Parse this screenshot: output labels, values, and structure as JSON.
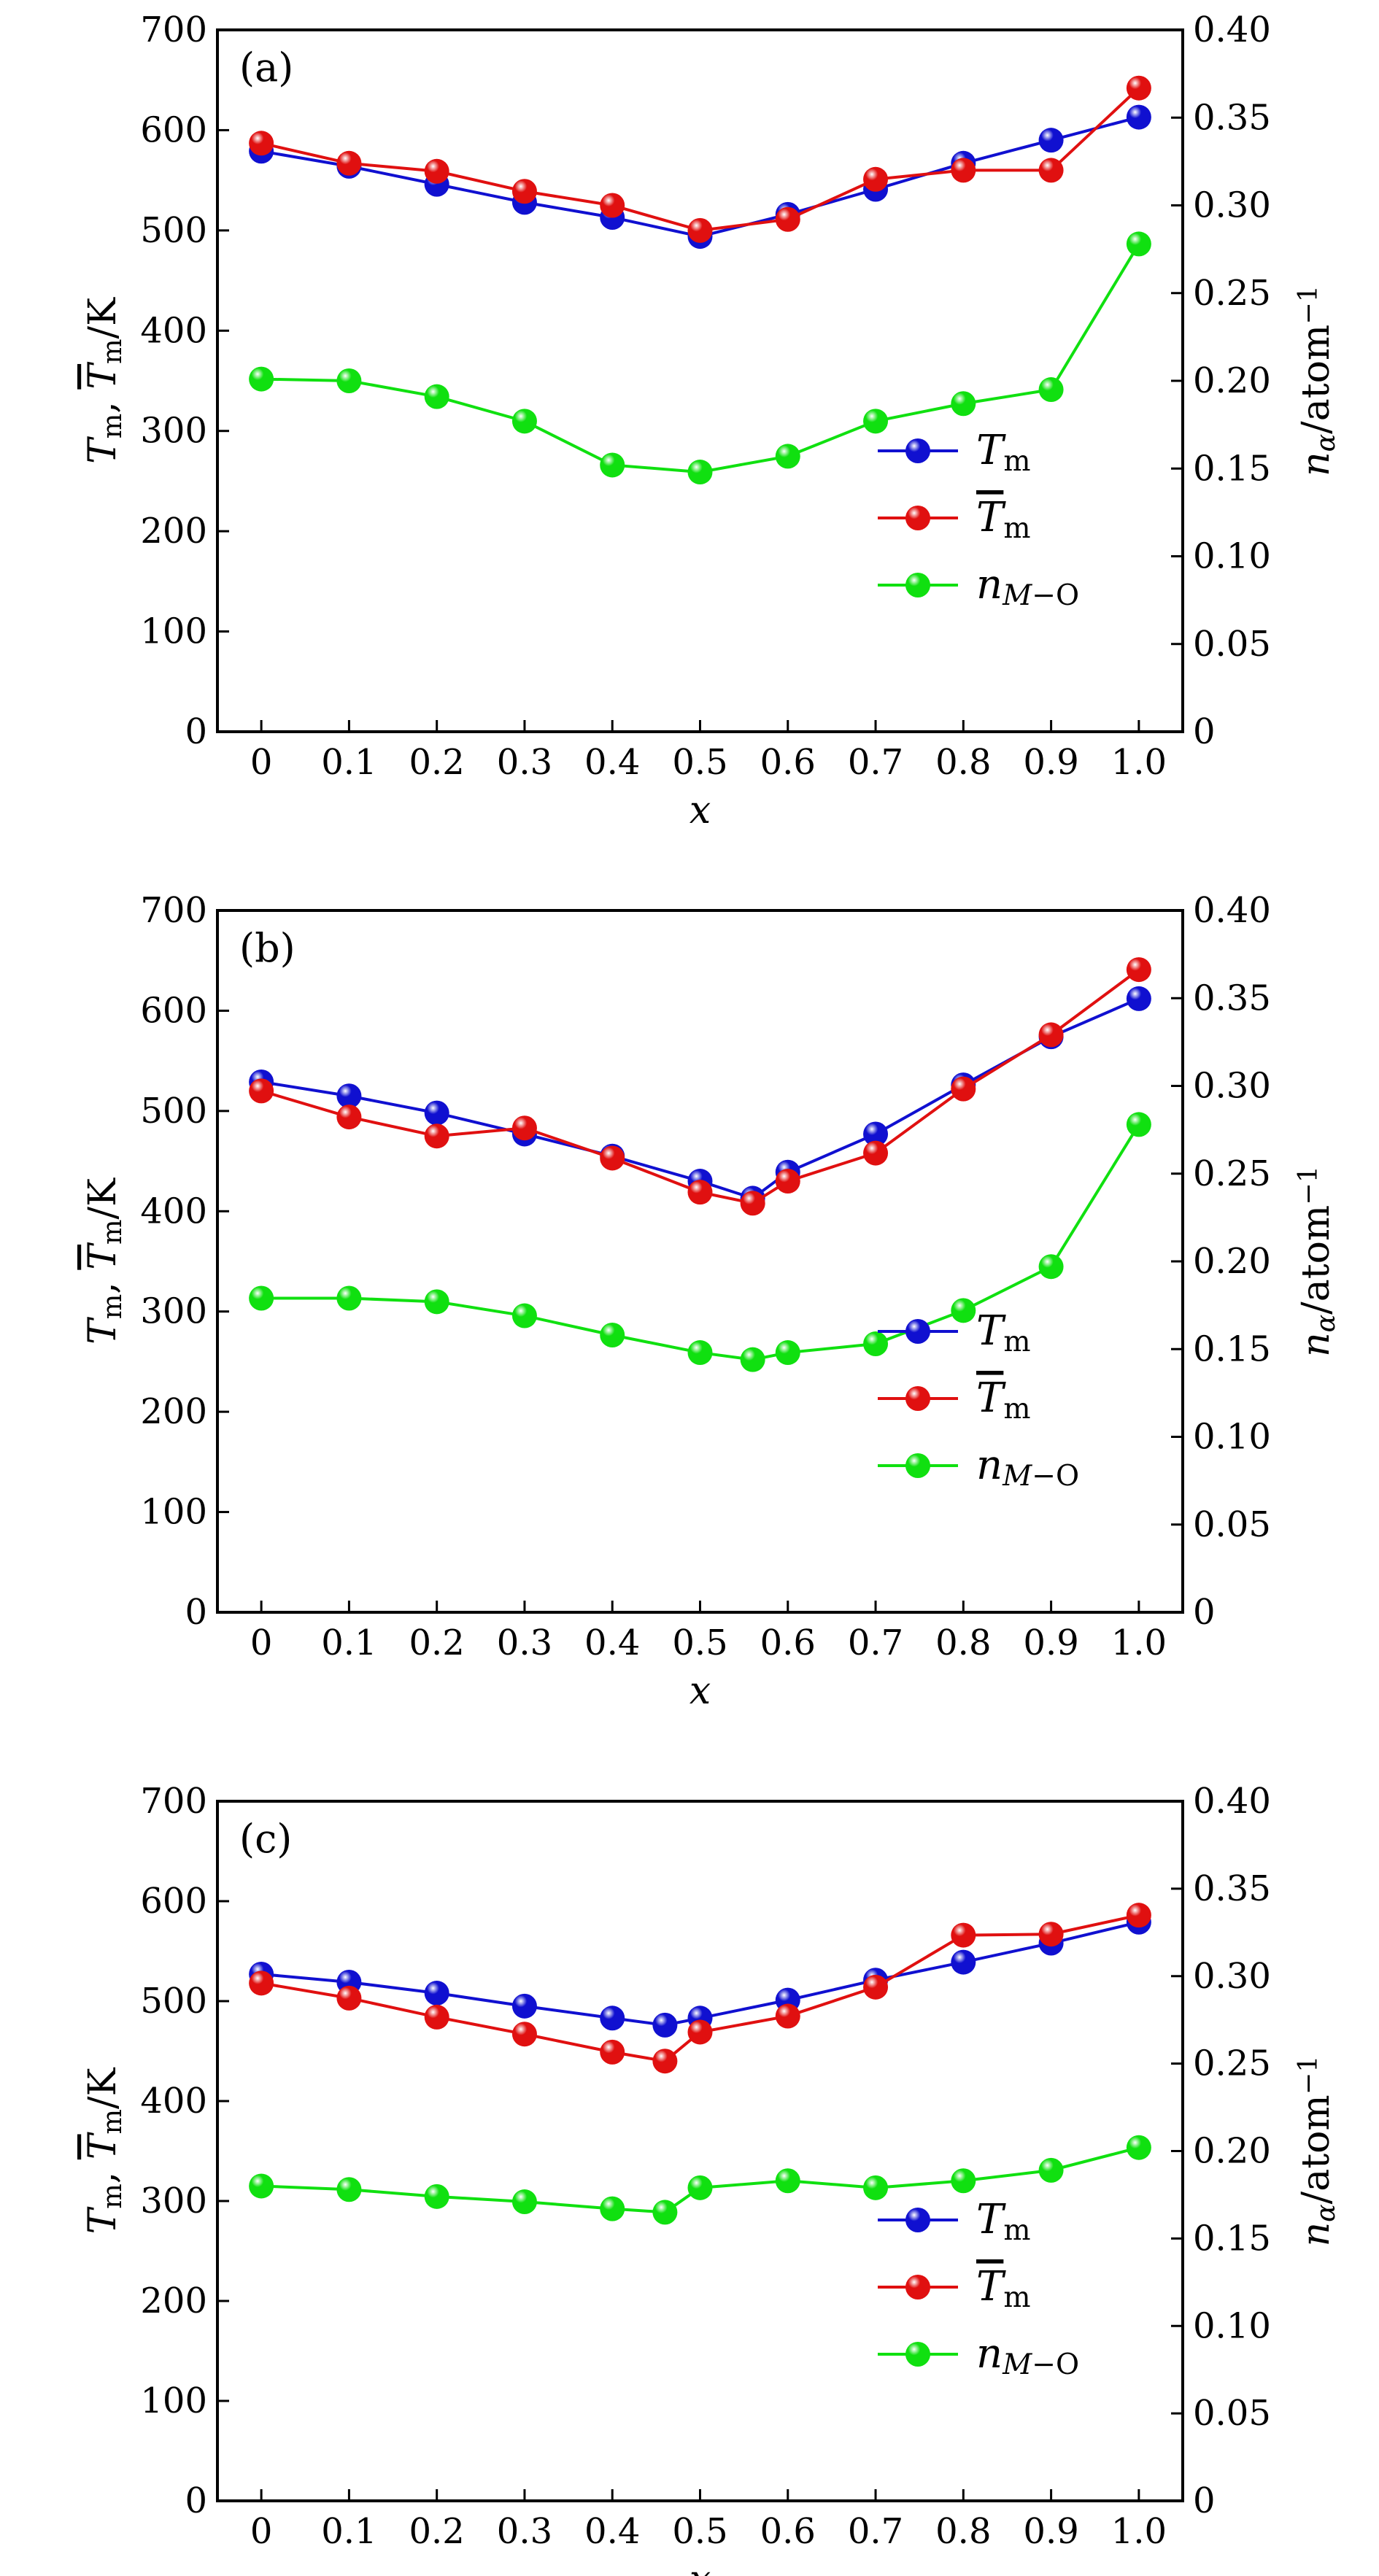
{
  "colors": {
    "Tm": "#1010d0",
    "Tm_bar": "#e01010",
    "n_MO": "#10e010"
  },
  "legend": {
    "placement": "lower-right",
    "entries": [
      {
        "key": "Tm",
        "parts": [
          {
            "t": "T",
            "i": true
          },
          {
            "t": "m",
            "sub": true
          }
        ]
      },
      {
        "key": "Tm_bar",
        "parts": [
          {
            "t": "T",
            "i": true,
            "bar": true
          },
          {
            "t": "m",
            "sub": true
          }
        ]
      },
      {
        "key": "n_MO",
        "parts": [
          {
            "t": "n",
            "i": true
          },
          {
            "t": "M",
            "sub": true,
            "i": true
          },
          {
            "t": "−O",
            "sub": true
          }
        ]
      }
    ]
  },
  "chart_data": [
    {
      "type": "line",
      "panel_label": "(a)",
      "xlabel": "x",
      "ylabel_left": [
        {
          "t": "T",
          "i": true
        },
        {
          "t": "m",
          "sub": true
        },
        {
          "t": ", "
        },
        {
          "t": "T",
          "i": true,
          "bar": true
        },
        {
          "t": "m",
          "sub": true
        },
        {
          "t": "/K"
        }
      ],
      "ylabel_right": [
        {
          "t": "n",
          "i": true
        },
        {
          "t": "α",
          "sub": true,
          "i": true
        },
        {
          "t": "/atom"
        },
        {
          "t": "−1",
          "sup": true
        }
      ],
      "xlim": [
        -0.05,
        1.05
      ],
      "ylim_left": [
        0,
        700
      ],
      "ylim_right": [
        0,
        0.4
      ],
      "xticks": [
        "0",
        "0.1",
        "0.2",
        "0.3",
        "0.4",
        "0.5",
        "0.6",
        "0.7",
        "0.8",
        "0.9",
        "1.0"
      ],
      "yticks_left": [
        "0",
        "100",
        "200",
        "300",
        "400",
        "500",
        "600",
        "700"
      ],
      "yticks_right": [
        "0",
        "0.05",
        "0.10",
        "0.15",
        "0.20",
        "0.25",
        "0.30",
        "0.35",
        "0.40"
      ],
      "x": [
        0,
        0.1,
        0.2,
        0.3,
        0.4,
        0.5,
        0.6,
        0.7,
        0.8,
        0.9,
        1.0
      ],
      "series": [
        {
          "key": "Tm",
          "axis": "left",
          "values": [
            579,
            564,
            546,
            528,
            513,
            494,
            516,
            541,
            567,
            590,
            613
          ]
        },
        {
          "key": "Tm_bar",
          "axis": "left",
          "values": [
            587,
            567,
            559,
            539,
            525,
            500,
            511,
            551,
            560,
            560,
            642
          ]
        },
        {
          "key": "n_MO",
          "axis": "right",
          "values": [
            0.201,
            0.2,
            0.191,
            0.177,
            0.152,
            0.148,
            0.157,
            0.177,
            0.187,
            0.195,
            0.278
          ]
        }
      ]
    },
    {
      "type": "line",
      "panel_label": "(b)",
      "xlabel": "x",
      "ylabel_left": [
        {
          "t": "T",
          "i": true
        },
        {
          "t": "m",
          "sub": true
        },
        {
          "t": ", "
        },
        {
          "t": "T",
          "i": true,
          "bar": true
        },
        {
          "t": "m",
          "sub": true
        },
        {
          "t": "/K"
        }
      ],
      "ylabel_right": [
        {
          "t": "n",
          "i": true
        },
        {
          "t": "α",
          "sub": true,
          "i": true
        },
        {
          "t": "/atom"
        },
        {
          "t": "−1",
          "sup": true
        }
      ],
      "xlim": [
        -0.05,
        1.05
      ],
      "ylim_left": [
        0,
        700
      ],
      "ylim_right": [
        0,
        0.4
      ],
      "xticks": [
        "0",
        "0.1",
        "0.2",
        "0.3",
        "0.4",
        "0.5",
        "0.6",
        "0.7",
        "0.8",
        "0.9",
        "1.0"
      ],
      "yticks_left": [
        "0",
        "100",
        "200",
        "300",
        "400",
        "500",
        "600",
        "700"
      ],
      "yticks_right": [
        "0",
        "0.05",
        "0.10",
        "0.15",
        "0.20",
        "0.25",
        "0.30",
        "0.35",
        "0.40"
      ],
      "x": [
        0,
        0.1,
        0.2,
        0.3,
        0.4,
        0.5,
        0.56,
        0.6,
        0.7,
        0.8,
        0.9,
        1.0
      ],
      "series": [
        {
          "key": "Tm",
          "axis": "left",
          "values": [
            529,
            515,
            498,
            477,
            455,
            430,
            413,
            439,
            477,
            526,
            574,
            612
          ]
        },
        {
          "key": "Tm_bar",
          "axis": "left",
          "values": [
            520,
            494,
            475,
            483,
            453,
            419,
            408,
            430,
            458,
            522,
            576,
            641
          ]
        },
        {
          "key": "n_MO",
          "axis": "right",
          "values": [
            0.179,
            0.179,
            0.177,
            0.169,
            0.158,
            0.148,
            0.144,
            0.148,
            0.153,
            0.172,
            0.197,
            0.278
          ]
        }
      ]
    },
    {
      "type": "line",
      "panel_label": "(c)",
      "xlabel": "x",
      "ylabel_left": [
        {
          "t": "T",
          "i": true
        },
        {
          "t": "m",
          "sub": true
        },
        {
          "t": ", "
        },
        {
          "t": "T",
          "i": true,
          "bar": true
        },
        {
          "t": "m",
          "sub": true
        },
        {
          "t": "/K"
        }
      ],
      "ylabel_right": [
        {
          "t": "n",
          "i": true
        },
        {
          "t": "α",
          "sub": true,
          "i": true
        },
        {
          "t": "/atom"
        },
        {
          "t": "−1",
          "sup": true
        }
      ],
      "xlim": [
        -0.05,
        1.05
      ],
      "ylim_left": [
        0,
        700
      ],
      "ylim_right": [
        0,
        0.4
      ],
      "xticks": [
        "0",
        "0.1",
        "0.2",
        "0.3",
        "0.4",
        "0.5",
        "0.6",
        "0.7",
        "0.8",
        "0.9",
        "1.0"
      ],
      "yticks_left": [
        "0",
        "100",
        "200",
        "300",
        "400",
        "500",
        "600",
        "700"
      ],
      "yticks_right": [
        "0",
        "0.05",
        "0.10",
        "0.15",
        "0.20",
        "0.25",
        "0.30",
        "0.35",
        "0.40"
      ],
      "x": [
        0,
        0.1,
        0.2,
        0.3,
        0.4,
        0.46,
        0.5,
        0.6,
        0.7,
        0.8,
        0.9,
        1.0
      ],
      "series": [
        {
          "key": "Tm",
          "axis": "left",
          "values": [
            527,
            519,
            508,
            495,
            483,
            476,
            483,
            501,
            521,
            539,
            558,
            579
          ]
        },
        {
          "key": "Tm_bar",
          "axis": "left",
          "values": [
            518,
            503,
            484,
            467,
            449,
            440,
            469,
            485,
            514,
            566,
            567,
            586
          ]
        },
        {
          "key": "n_MO",
          "axis": "right",
          "values": [
            0.18,
            0.178,
            0.174,
            0.171,
            0.167,
            0.165,
            0.179,
            0.183,
            0.179,
            0.183,
            0.189,
            0.202
          ]
        }
      ]
    }
  ]
}
